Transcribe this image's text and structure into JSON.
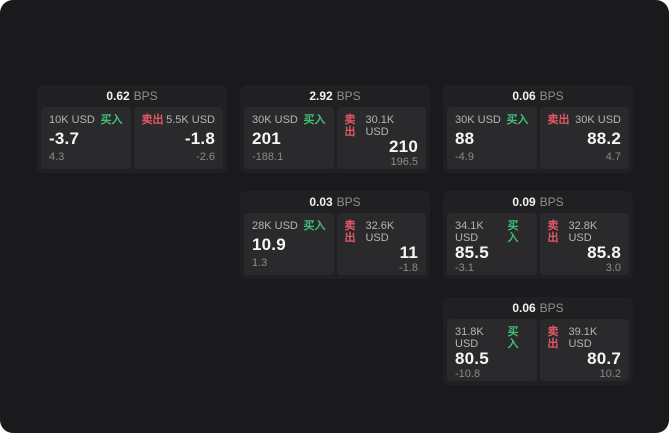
{
  "page": {
    "bps_unit": "BPS",
    "buy_label": "买入",
    "sell_label": "卖出",
    "colors": {
      "background": "#1a1a1c",
      "card": "#202023",
      "panel": "#2a2a2d",
      "buy_accent": "#42bd74",
      "sell_accent": "#e25865",
      "price_text": "#f5f5f5",
      "muted_text": "#8a8a8a"
    }
  },
  "cards": [
    {
      "col": 1,
      "row": 1,
      "bps": "0.62",
      "buy": {
        "size": "10K USD",
        "price": "-3.7",
        "delta": "4.3"
      },
      "sell": {
        "size": "5.5K USD",
        "price": "-1.8",
        "delta": "-2.6"
      }
    },
    {
      "col": 2,
      "row": 1,
      "bps": "2.92",
      "buy": {
        "size": "30K USD",
        "price": "201",
        "delta": "-188.1"
      },
      "sell": {
        "size": "30.1K USD",
        "price": "210",
        "delta": "196.5"
      }
    },
    {
      "col": 3,
      "row": 1,
      "bps": "0.06",
      "buy": {
        "size": "30K USD",
        "price": "88",
        "delta": "-4.9"
      },
      "sell": {
        "size": "30K USD",
        "price": "88.2",
        "delta": "4.7"
      }
    },
    {
      "col": 2,
      "row": 2,
      "bps": "0.03",
      "buy": {
        "size": "28K USD",
        "price": "10.9",
        "delta": "1.3"
      },
      "sell": {
        "size": "32.6K USD",
        "price": "11",
        "delta": "-1.8"
      }
    },
    {
      "col": 3,
      "row": 2,
      "bps": "0.09",
      "buy": {
        "size": "34.1K USD",
        "price": "85.5",
        "delta": "-3.1"
      },
      "sell": {
        "size": "32.8K USD",
        "price": "85.8",
        "delta": "3.0"
      }
    },
    {
      "col": 3,
      "row": 3,
      "bps": "0.06",
      "buy": {
        "size": "31.8K USD",
        "price": "80.5",
        "delta": "-10.8"
      },
      "sell": {
        "size": "39.1K USD",
        "price": "80.7",
        "delta": "10.2"
      }
    }
  ]
}
